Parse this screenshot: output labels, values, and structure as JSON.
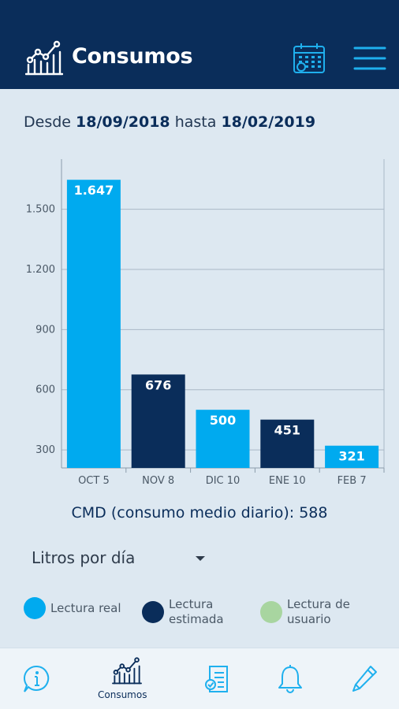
{
  "header": {
    "title": "Consumos",
    "calendar_icon": "calendar-icon",
    "menu_icon": "menu-icon",
    "background": "#0a2d5a"
  },
  "date_range": {
    "from_label": "Desde",
    "from_date": "18/09/2018",
    "to_label": "hasta",
    "to_date": "18/02/2019"
  },
  "chart_data": {
    "type": "bar",
    "categories": [
      "OCT 5",
      "NOV 8",
      "DIC 10",
      "ENE 10",
      "FEB 7"
    ],
    "values": [
      1647,
      676,
      500,
      451,
      321
    ],
    "value_labels": [
      "1.647",
      "676",
      "500",
      "451",
      "321"
    ],
    "series_type": [
      "real",
      "estimada",
      "real",
      "estimada",
      "real"
    ],
    "y_ticks": [
      300,
      600,
      900,
      1200,
      1500
    ],
    "y_tick_labels": [
      "300",
      "600",
      "900",
      "1.200",
      "1.500"
    ],
    "ylim": [
      210,
      1750
    ],
    "grid": true,
    "colors": {
      "real": "#00aaef",
      "estimada": "#0a2d5a",
      "usuario": "#a8d5a0"
    }
  },
  "summary": {
    "cmd_text": "CMD (consumo medio diario): 588"
  },
  "unit_selector": {
    "selected": "Litros por día"
  },
  "legend": [
    {
      "label": "Lectura real",
      "color": "#00aaef"
    },
    {
      "label": "Lectura\nestimada",
      "color": "#0a2d5a"
    },
    {
      "label": "Lectura de\nusuario",
      "color": "#a8d5a0"
    }
  ],
  "bottom_nav": [
    {
      "icon": "info-icon",
      "label": ""
    },
    {
      "icon": "chart-icon",
      "label": "Consumos"
    },
    {
      "icon": "invoice-icon",
      "label": ""
    },
    {
      "icon": "bell-icon",
      "label": ""
    },
    {
      "icon": "pencil-icon",
      "label": ""
    }
  ]
}
